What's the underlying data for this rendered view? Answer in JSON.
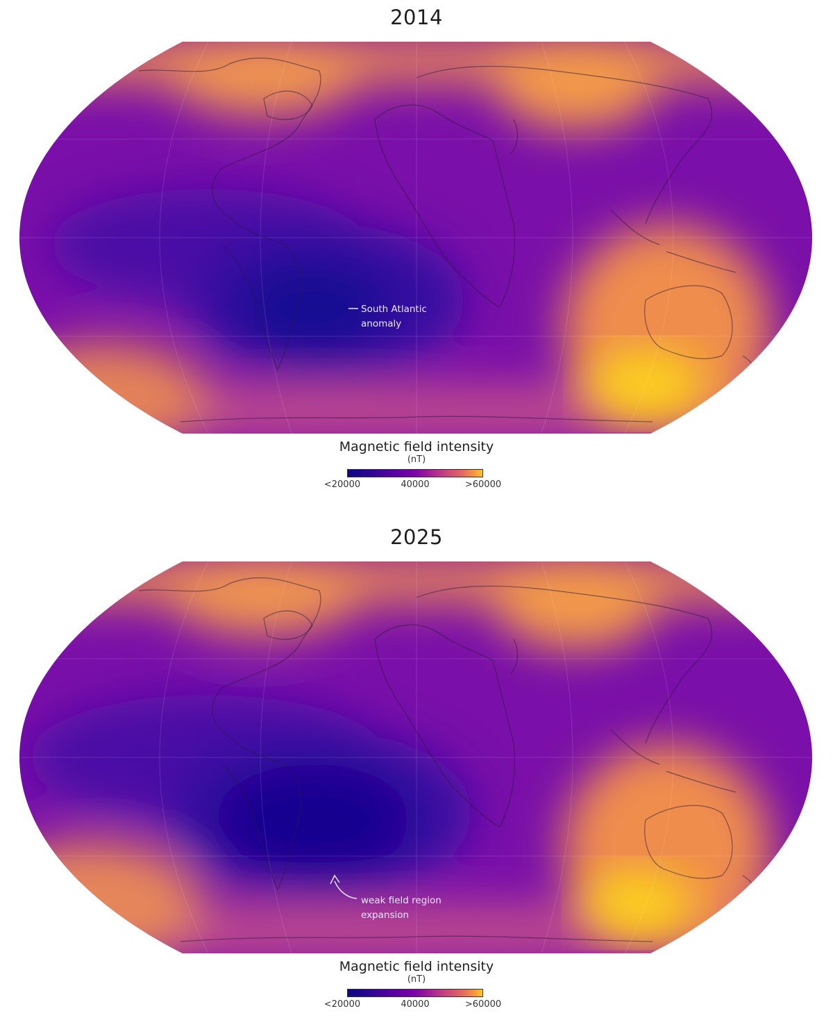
{
  "panels": [
    {
      "title": "2014",
      "annotation": {
        "lines": [
          "South Atlantic",
          "anomaly"
        ]
      }
    },
    {
      "title": "2025",
      "annotation": {
        "lines": [
          "weak field region",
          "expansion"
        ]
      }
    }
  ],
  "legend": {
    "title": "Magnetic field intensity",
    "unit": "(nT)",
    "ticks": [
      "<20000",
      "40000",
      ">60000"
    ]
  },
  "colors": {
    "low": "#0d0887",
    "mid": "#7e03a8",
    "high": "#f89540",
    "max": "#fde725"
  }
}
